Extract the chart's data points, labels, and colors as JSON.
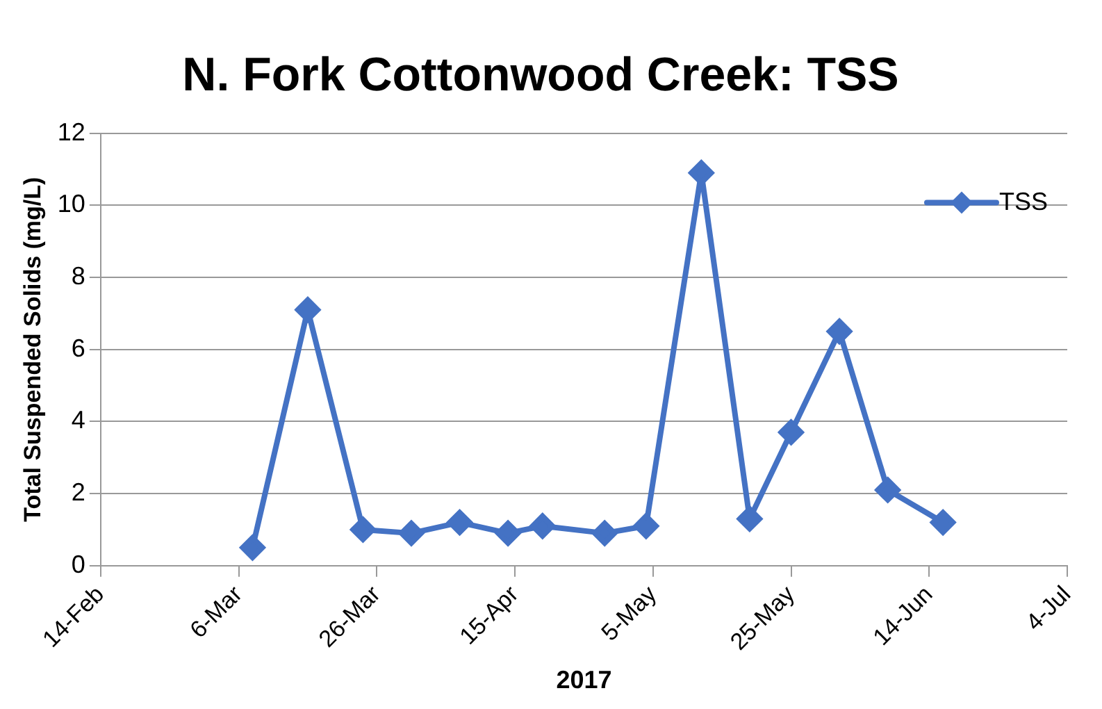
{
  "chart_data": {
    "type": "line",
    "title": "N. Fork Cottonwood Creek: TSS",
    "xlabel": "2017",
    "ylabel": "Total Suspended Solids (mg/L)",
    "x": [
      "2017-03-08",
      "2017-03-16",
      "2017-03-24",
      "2017-03-31",
      "2017-04-07",
      "2017-04-14",
      "2017-04-19",
      "2017-04-28",
      "2017-05-04",
      "2017-05-12",
      "2017-05-19",
      "2017-05-25",
      "2017-06-01",
      "2017-06-08",
      "2017-06-16"
    ],
    "series": [
      {
        "name": "TSS",
        "color": "#4472c4",
        "values": [
          0.5,
          7.1,
          1.0,
          0.9,
          1.2,
          0.9,
          1.1,
          0.9,
          1.1,
          10.9,
          1.3,
          3.7,
          6.5,
          2.1,
          1.2
        ]
      }
    ],
    "xlim": [
      "2017-02-14",
      "2017-07-04"
    ],
    "xticks": [
      {
        "value": "2017-02-14",
        "label": "14-Feb"
      },
      {
        "value": "2017-03-06",
        "label": "6-Mar"
      },
      {
        "value": "2017-03-26",
        "label": "26-Mar"
      },
      {
        "value": "2017-04-15",
        "label": "15-Apr"
      },
      {
        "value": "2017-05-05",
        "label": "5-May"
      },
      {
        "value": "2017-05-25",
        "label": "25-May"
      },
      {
        "value": "2017-06-14",
        "label": "14-Jun"
      },
      {
        "value": "2017-07-04",
        "label": "4-Jul"
      }
    ],
    "ylim": [
      0,
      12
    ],
    "yticks": [
      0,
      2,
      4,
      6,
      8,
      10,
      12
    ],
    "grid": "y",
    "legend": "top right",
    "marker": "diamond",
    "line_style": "solid"
  }
}
